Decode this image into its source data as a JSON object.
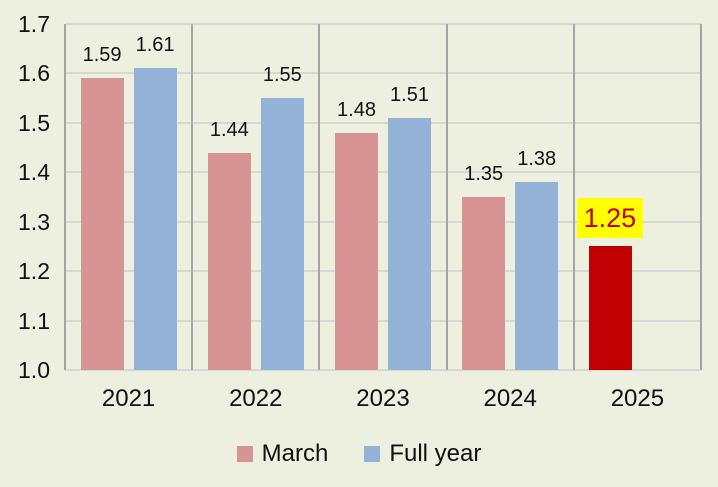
{
  "chart_data": {
    "type": "bar",
    "title": "",
    "categories": [
      "2021",
      "2022",
      "2023",
      "2024",
      "2025"
    ],
    "series": [
      {
        "name": "March",
        "color": "#D89495",
        "values": [
          1.59,
          1.44,
          1.48,
          1.35,
          1.25
        ],
        "labels": [
          "1.59",
          "1.44",
          "1.48",
          "1.35",
          "1.25"
        ]
      },
      {
        "name": "Full year",
        "color": "#94B1D7",
        "values": [
          1.61,
          1.55,
          1.51,
          1.38,
          null
        ],
        "labels": [
          "1.61",
          "1.55",
          "1.51",
          "1.38",
          ""
        ]
      }
    ],
    "highlight": {
      "category": "2025",
      "series": "March",
      "bar_color": "#C00000",
      "label_bg": "#FFFF00",
      "label_text_color": "#C00000",
      "label_text": "1.25"
    },
    "ylim": [
      1.0,
      1.7
    ],
    "ytick_labels": [
      "1.0",
      "1.1",
      "1.2",
      "1.3",
      "1.4",
      "1.5",
      "1.6",
      "1.7"
    ],
    "xlabel": "",
    "ylabel": "",
    "grid": true,
    "legend_position": "bottom"
  },
  "colors": {
    "background": "#EDEFDF",
    "gridline": "#D6D8D1",
    "axis_border": "#A5A5A5",
    "text": "#111111"
  }
}
